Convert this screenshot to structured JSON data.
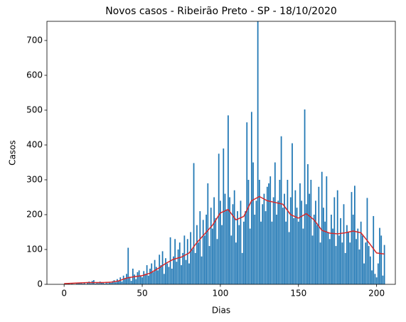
{
  "chart_data": {
    "type": "bar",
    "title": "Novos casos - Ribeirão Preto - SP - 18/10/2020",
    "xlabel": "Dias",
    "ylabel": "Casos",
    "xlim": [
      -11,
      212
    ],
    "ylim": [
      0,
      755
    ],
    "xticks": [
      0,
      50,
      100,
      150,
      200
    ],
    "yticks": [
      0,
      100,
      200,
      300,
      400,
      500,
      600,
      700
    ],
    "series": [
      {
        "type": "bar",
        "color": "#1f77b4",
        "x": [
          0,
          1,
          2,
          3,
          4,
          5,
          6,
          7,
          8,
          9,
          10,
          11,
          12,
          13,
          14,
          15,
          16,
          17,
          18,
          19,
          20,
          21,
          22,
          23,
          24,
          25,
          26,
          27,
          28,
          29,
          30,
          31,
          32,
          33,
          34,
          35,
          36,
          37,
          38,
          39,
          40,
          41,
          42,
          43,
          44,
          45,
          46,
          47,
          48,
          49,
          50,
          51,
          52,
          53,
          54,
          55,
          56,
          57,
          58,
          59,
          60,
          61,
          62,
          63,
          64,
          65,
          66,
          67,
          68,
          69,
          70,
          71,
          72,
          73,
          74,
          75,
          76,
          77,
          78,
          79,
          80,
          81,
          82,
          83,
          84,
          85,
          86,
          87,
          88,
          89,
          90,
          91,
          92,
          93,
          94,
          95,
          96,
          97,
          98,
          99,
          100,
          101,
          102,
          103,
          104,
          105,
          106,
          107,
          108,
          109,
          110,
          111,
          112,
          113,
          114,
          115,
          116,
          117,
          118,
          119,
          120,
          121,
          122,
          123,
          124,
          125,
          126,
          127,
          128,
          129,
          130,
          131,
          132,
          133,
          134,
          135,
          136,
          137,
          138,
          139,
          140,
          141,
          142,
          143,
          144,
          145,
          146,
          147,
          148,
          149,
          150,
          151,
          152,
          153,
          154,
          155,
          156,
          157,
          158,
          159,
          160,
          161,
          162,
          163,
          164,
          165,
          166,
          167,
          168,
          169,
          170,
          171,
          172,
          173,
          174,
          175,
          176,
          177,
          178,
          179,
          180,
          181,
          182,
          183,
          184,
          185,
          186,
          187,
          188,
          189,
          190,
          191,
          192,
          193,
          194,
          195,
          196,
          197,
          198,
          199,
          200,
          201,
          202,
          203,
          204,
          205
        ],
        "values": [
          0,
          1,
          0,
          2,
          0,
          3,
          1,
          0,
          2,
          4,
          3,
          5,
          2,
          6,
          1,
          4,
          8,
          3,
          10,
          12,
          2,
          5,
          3,
          8,
          4,
          6,
          2,
          7,
          3,
          5,
          4,
          9,
          12,
          6,
          15,
          10,
          20,
          8,
          25,
          18,
          30,
          105,
          22,
          10,
          45,
          28,
          15,
          35,
          40,
          25,
          20,
          38,
          30,
          55,
          25,
          45,
          60,
          35,
          70,
          50,
          40,
          85,
          55,
          95,
          30,
          75,
          60,
          50,
          135,
          45,
          80,
          130,
          65,
          100,
          120,
          55,
          90,
          140,
          70,
          130,
          60,
          150,
          100,
          348,
          90,
          170,
          120,
          210,
          80,
          185,
          140,
          200,
          290,
          110,
          220,
          160,
          250,
          190,
          130,
          375,
          240,
          170,
          390,
          260,
          215,
          485,
          250,
          140,
          230,
          270,
          120,
          210,
          170,
          240,
          90,
          180,
          210,
          465,
          300,
          160,
          495,
          350,
          200,
          240,
          780,
          300,
          180,
          230,
          260,
          210,
          280,
          290,
          310,
          180,
          250,
          350,
          200,
          240,
          300,
          425,
          220,
          260,
          180,
          300,
          150,
          250,
          405,
          190,
          270,
          220,
          180,
          290,
          240,
          160,
          502,
          230,
          345,
          260,
          300,
          140,
          200,
          240,
          170,
          280,
          120,
          323,
          220,
          180,
          310,
          150,
          130,
          200,
          160,
          250,
          110,
          270,
          140,
          190,
          120,
          230,
          90,
          170,
          150,
          120,
          265,
          200,
          283,
          130,
          160,
          100,
          180,
          140,
          60,
          120,
          248,
          110,
          80,
          40,
          196,
          30,
          20,
          60,
          162,
          140,
          25,
          113
        ]
      },
      {
        "type": "line",
        "color": "#d62728",
        "x": [
          0,
          5,
          10,
          15,
          20,
          25,
          30,
          35,
          40,
          45,
          50,
          55,
          60,
          65,
          70,
          75,
          80,
          85,
          90,
          95,
          100,
          105,
          110,
          115,
          120,
          125,
          130,
          135,
          140,
          145,
          150,
          155,
          160,
          165,
          170,
          175,
          180,
          185,
          190,
          195,
          200,
          205
        ],
        "values": [
          2,
          3,
          4,
          5,
          5,
          5,
          6,
          10,
          18,
          22,
          25,
          32,
          45,
          60,
          72,
          78,
          90,
          120,
          145,
          170,
          205,
          215,
          185,
          195,
          240,
          252,
          240,
          235,
          230,
          200,
          190,
          203,
          185,
          155,
          147,
          145,
          148,
          153,
          148,
          120,
          90,
          87
        ]
      }
    ]
  }
}
